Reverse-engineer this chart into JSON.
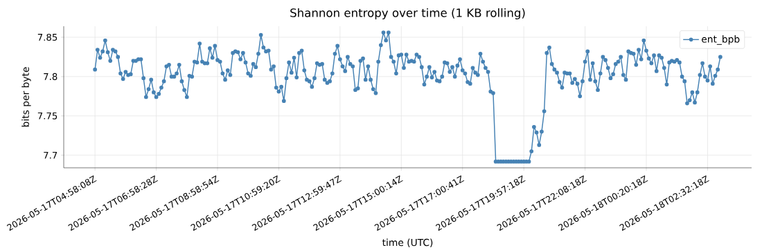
{
  "chart_data": {
    "type": "line",
    "title": "Shannon entropy over time (1 KB rolling)",
    "xlabel": "time (UTC)",
    "ylabel": "bits per byte",
    "categories": [
      "2026-05-17T04:58:08Z",
      null,
      null,
      null,
      null,
      null,
      null,
      null,
      null,
      null,
      null,
      null,
      null,
      null,
      null,
      null,
      null,
      null,
      null,
      null,
      null,
      null,
      null,
      null,
      "2026-05-17T06:58:28Z",
      null,
      null,
      null,
      null,
      null,
      null,
      null,
      null,
      null,
      null,
      null,
      null,
      null,
      null,
      null,
      null,
      null,
      null,
      null,
      null,
      null,
      null,
      null,
      "2026-05-17T08:58:54Z",
      null,
      null,
      null,
      null,
      null,
      null,
      null,
      null,
      null,
      null,
      null,
      null,
      null,
      null,
      null,
      null,
      null,
      null,
      null,
      null,
      null,
      null,
      null,
      "2026-05-17T10:59:20Z",
      null,
      null,
      null,
      null,
      null,
      null,
      null,
      null,
      null,
      null,
      null,
      null,
      null,
      null,
      null,
      null,
      null,
      null,
      null,
      null,
      null,
      null,
      null,
      "2026-05-17T12:59:47Z",
      null,
      null,
      null,
      null,
      null,
      null,
      null,
      null,
      null,
      null,
      null,
      null,
      null,
      null,
      null,
      null,
      null,
      null,
      null,
      null,
      null,
      null,
      null,
      "2026-05-17T15:00:14Z",
      null,
      null,
      null,
      null,
      null,
      null,
      null,
      null,
      null,
      null,
      null,
      null,
      null,
      null,
      null,
      null,
      null,
      null,
      null,
      null,
      null,
      null,
      null,
      "2026-05-17T17:00:41Z",
      null,
      null,
      null,
      null,
      null,
      null,
      null,
      null,
      null,
      null,
      null,
      null,
      null,
      null,
      null,
      null,
      null,
      null,
      null,
      null,
      null,
      null,
      null,
      "2026-05-17T19:57:18Z",
      null,
      null,
      null,
      null,
      null,
      null,
      null,
      null,
      null,
      null,
      null,
      null,
      null,
      null,
      null,
      null,
      null,
      null,
      null,
      null,
      null,
      null,
      null,
      "2026-05-17T22:08:18Z",
      null,
      null,
      null,
      null,
      null,
      null,
      null,
      null,
      null,
      null,
      null,
      null,
      null,
      null,
      null,
      null,
      null,
      null,
      null,
      null,
      null,
      null,
      null,
      "2026-05-18T00:20:18Z",
      null,
      null,
      null,
      null,
      null,
      null,
      null,
      null,
      null,
      null,
      null,
      null,
      null,
      null,
      null,
      null,
      null,
      null,
      null,
      null,
      null,
      null,
      null,
      "2026-05-18T02:32:18Z",
      null,
      null,
      null,
      null,
      null
    ],
    "series": [
      {
        "name": "ent_bpb",
        "color": "#4682b4",
        "values": [
          7.809,
          7.834,
          7.824,
          7.832,
          7.846,
          7.831,
          7.82,
          7.834,
          7.832,
          7.825,
          7.804,
          7.797,
          7.806,
          7.802,
          7.803,
          7.82,
          7.82,
          7.822,
          7.822,
          7.798,
          7.774,
          7.784,
          7.796,
          7.78,
          7.774,
          7.778,
          7.786,
          7.794,
          7.813,
          7.815,
          7.8,
          7.8,
          7.804,
          7.815,
          7.794,
          7.783,
          7.774,
          7.801,
          7.8,
          7.819,
          7.818,
          7.842,
          7.819,
          7.817,
          7.817,
          7.836,
          7.824,
          7.839,
          7.821,
          7.819,
          7.804,
          7.796,
          7.808,
          7.802,
          7.83,
          7.832,
          7.831,
          7.822,
          7.83,
          7.818,
          7.804,
          7.801,
          7.816,
          7.812,
          7.829,
          7.853,
          7.837,
          7.832,
          7.833,
          7.809,
          7.813,
          7.786,
          7.781,
          7.787,
          7.769,
          7.798,
          7.818,
          7.805,
          7.824,
          7.799,
          7.83,
          7.833,
          7.808,
          7.796,
          7.794,
          7.787,
          7.798,
          7.817,
          7.815,
          7.816,
          7.796,
          7.792,
          7.794,
          7.804,
          7.829,
          7.839,
          7.822,
          7.813,
          7.807,
          7.825,
          7.816,
          7.813,
          7.783,
          7.785,
          7.82,
          7.823,
          7.796,
          7.813,
          7.796,
          7.784,
          7.779,
          7.819,
          7.84,
          7.856,
          7.846,
          7.856,
          7.825,
          7.819,
          7.804,
          7.827,
          7.828,
          7.811,
          7.828,
          7.819,
          7.82,
          7.819,
          7.828,
          7.825,
          7.812,
          7.79,
          7.8,
          7.812,
          7.799,
          7.806,
          7.795,
          7.794,
          7.8,
          7.818,
          7.817,
          7.806,
          7.812,
          7.8,
          7.814,
          7.822,
          7.808,
          7.804,
          7.793,
          7.791,
          7.811,
          7.805,
          7.802,
          7.829,
          7.819,
          7.811,
          7.806,
          7.781,
          7.779,
          7.692,
          7.692,
          7.692,
          7.692,
          7.692,
          7.692,
          7.692,
          7.692,
          7.692,
          7.692,
          7.692,
          7.692,
          7.692,
          7.692,
          7.705,
          7.736,
          7.729,
          7.713,
          7.73,
          7.756,
          7.83,
          7.837,
          7.816,
          7.809,
          7.805,
          7.793,
          7.786,
          7.805,
          7.804,
          7.804,
          7.792,
          7.797,
          7.791,
          7.775,
          7.794,
          7.819,
          7.832,
          7.796,
          7.817,
          7.794,
          7.783,
          7.804,
          7.825,
          7.821,
          7.811,
          7.798,
          7.803,
          7.816,
          7.819,
          7.825,
          7.802,
          7.796,
          7.832,
          7.83,
          7.829,
          7.815,
          7.834,
          7.822,
          7.846,
          7.833,
          7.823,
          7.817,
          7.827,
          7.807,
          7.827,
          7.824,
          7.811,
          7.79,
          7.818,
          7.82,
          7.819,
          7.821,
          7.818,
          7.8,
          7.794,
          7.766,
          7.77,
          7.78,
          7.767,
          7.78,
          7.802,
          7.817,
          7.8,
          7.795,
          7.813,
          7.791,
          7.801,
          7.809,
          7.825
        ]
      }
    ],
    "ylim": [
      7.684,
      7.864
    ],
    "yticks": [
      7.7,
      7.75,
      7.8,
      7.85
    ],
    "grid": true,
    "legend": "top right",
    "marker": "circle",
    "line_style": "solid"
  }
}
